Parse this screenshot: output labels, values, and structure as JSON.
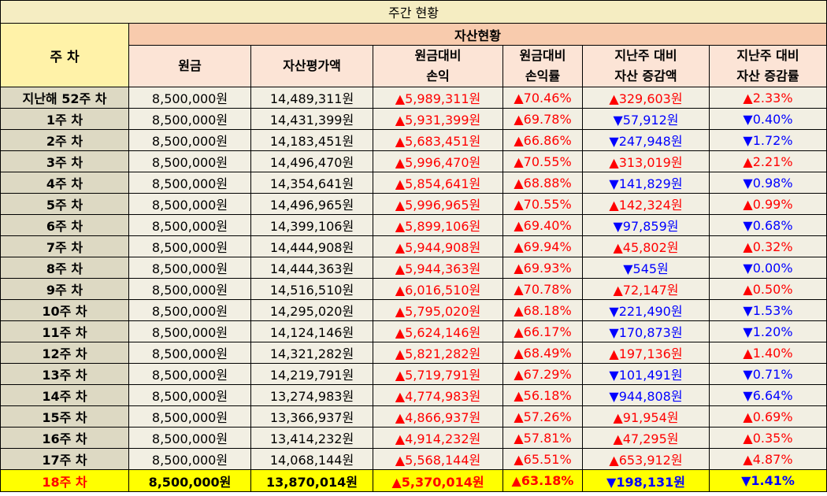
{
  "title": "주간 현황",
  "week_header": "주 차",
  "group_header": "자산현황",
  "columns": [
    {
      "line1": "원금",
      "line2": ""
    },
    {
      "line1": "자산평가액",
      "line2": ""
    },
    {
      "line1": "원금대비",
      "line2": "손익"
    },
    {
      "line1": "원금대비",
      "line2": "손익률"
    },
    {
      "line1": "지난주 대비",
      "line2": "자산 증감액"
    },
    {
      "line1": "지난주 대비",
      "line2": "자산 증감률"
    }
  ],
  "rows": [
    {
      "week": "지난해 52주 차",
      "principal": "8,500,000원",
      "asset": "14,489,311원",
      "pl": "▲5,989,311원",
      "pl_dir": "up",
      "pl_rate": "▲70.46%",
      "pl_rate_dir": "up",
      "chg": "▲329,603원",
      "chg_dir": "up",
      "chg_rate": "▲2.33%",
      "chg_rate_dir": "up"
    },
    {
      "week": "1주 차",
      "principal": "8,500,000원",
      "asset": "14,431,399원",
      "pl": "▲5,931,399원",
      "pl_dir": "up",
      "pl_rate": "▲69.78%",
      "pl_rate_dir": "up",
      "chg": "▼57,912원",
      "chg_dir": "down",
      "chg_rate": "▼0.40%",
      "chg_rate_dir": "down"
    },
    {
      "week": "2주 차",
      "principal": "8,500,000원",
      "asset": "14,183,451원",
      "pl": "▲5,683,451원",
      "pl_dir": "up",
      "pl_rate": "▲66.86%",
      "pl_rate_dir": "up",
      "chg": "▼247,948원",
      "chg_dir": "down",
      "chg_rate": "▼1.72%",
      "chg_rate_dir": "down"
    },
    {
      "week": "3주 차",
      "principal": "8,500,000원",
      "asset": "14,496,470원",
      "pl": "▲5,996,470원",
      "pl_dir": "up",
      "pl_rate": "▲70.55%",
      "pl_rate_dir": "up",
      "chg": "▲313,019원",
      "chg_dir": "up",
      "chg_rate": "▲2.21%",
      "chg_rate_dir": "up"
    },
    {
      "week": "4주 차",
      "principal": "8,500,000원",
      "asset": "14,354,641원",
      "pl": "▲5,854,641원",
      "pl_dir": "up",
      "pl_rate": "▲68.88%",
      "pl_rate_dir": "up",
      "chg": "▼141,829원",
      "chg_dir": "down",
      "chg_rate": "▼0.98%",
      "chg_rate_dir": "down"
    },
    {
      "week": "5주 차",
      "principal": "8,500,000원",
      "asset": "14,496,965원",
      "pl": "▲5,996,965원",
      "pl_dir": "up",
      "pl_rate": "▲70.55%",
      "pl_rate_dir": "up",
      "chg": "▲142,324원",
      "chg_dir": "up",
      "chg_rate": "▲0.99%",
      "chg_rate_dir": "up"
    },
    {
      "week": "6주 차",
      "principal": "8,500,000원",
      "asset": "14,399,106원",
      "pl": "▲5,899,106원",
      "pl_dir": "up",
      "pl_rate": "▲69.40%",
      "pl_rate_dir": "up",
      "chg": "▼97,859원",
      "chg_dir": "down",
      "chg_rate": "▼0.68%",
      "chg_rate_dir": "down"
    },
    {
      "week": "7주 차",
      "principal": "8,500,000원",
      "asset": "14,444,908원",
      "pl": "▲5,944,908원",
      "pl_dir": "up",
      "pl_rate": "▲69.94%",
      "pl_rate_dir": "up",
      "chg": "▲45,802원",
      "chg_dir": "up",
      "chg_rate": "▲0.32%",
      "chg_rate_dir": "up"
    },
    {
      "week": "8주 차",
      "principal": "8,500,000원",
      "asset": "14,444,363원",
      "pl": "▲5,944,363원",
      "pl_dir": "up",
      "pl_rate": "▲69.93%",
      "pl_rate_dir": "up",
      "chg": "▼545원",
      "chg_dir": "down",
      "chg_rate": "▼0.00%",
      "chg_rate_dir": "down"
    },
    {
      "week": "9주 차",
      "principal": "8,500,000원",
      "asset": "14,516,510원",
      "pl": "▲6,016,510원",
      "pl_dir": "up",
      "pl_rate": "▲70.78%",
      "pl_rate_dir": "up",
      "chg": "▲72,147원",
      "chg_dir": "up",
      "chg_rate": "▲0.50%",
      "chg_rate_dir": "up"
    },
    {
      "week": "10주 차",
      "principal": "8,500,000원",
      "asset": "14,295,020원",
      "pl": "▲5,795,020원",
      "pl_dir": "up",
      "pl_rate": "▲68.18%",
      "pl_rate_dir": "up",
      "chg": "▼221,490원",
      "chg_dir": "down",
      "chg_rate": "▼1.53%",
      "chg_rate_dir": "down"
    },
    {
      "week": "11주 차",
      "principal": "8,500,000원",
      "asset": "14,124,146원",
      "pl": "▲5,624,146원",
      "pl_dir": "up",
      "pl_rate": "▲66.17%",
      "pl_rate_dir": "up",
      "chg": "▼170,873원",
      "chg_dir": "down",
      "chg_rate": "▼1.20%",
      "chg_rate_dir": "down"
    },
    {
      "week": "12주 차",
      "principal": "8,500,000원",
      "asset": "14,321,282원",
      "pl": "▲5,821,282원",
      "pl_dir": "up",
      "pl_rate": "▲68.49%",
      "pl_rate_dir": "up",
      "chg": "▲197,136원",
      "chg_dir": "up",
      "chg_rate": "▲1.40%",
      "chg_rate_dir": "up"
    },
    {
      "week": "13주 차",
      "principal": "8,500,000원",
      "asset": "14,219,791원",
      "pl": "▲5,719,791원",
      "pl_dir": "up",
      "pl_rate": "▲67.29%",
      "pl_rate_dir": "up",
      "chg": "▼101,491원",
      "chg_dir": "down",
      "chg_rate": "▼0.71%",
      "chg_rate_dir": "down"
    },
    {
      "week": "14주 차",
      "principal": "8,500,000원",
      "asset": "13,274,983원",
      "pl": "▲4,774,983원",
      "pl_dir": "up",
      "pl_rate": "▲56.18%",
      "pl_rate_dir": "up",
      "chg": "▼944,808원",
      "chg_dir": "down",
      "chg_rate": "▼6.64%",
      "chg_rate_dir": "down"
    },
    {
      "week": "15주 차",
      "principal": "8,500,000원",
      "asset": "13,366,937원",
      "pl": "▲4,866,937원",
      "pl_dir": "up",
      "pl_rate": "▲57.26%",
      "pl_rate_dir": "up",
      "chg": "▲91,954원",
      "chg_dir": "up",
      "chg_rate": "▲0.69%",
      "chg_rate_dir": "up"
    },
    {
      "week": "16주 차",
      "principal": "8,500,000원",
      "asset": "13,414,232원",
      "pl": "▲4,914,232원",
      "pl_dir": "up",
      "pl_rate": "▲57.81%",
      "pl_rate_dir": "up",
      "chg": "▲47,295원",
      "chg_dir": "up",
      "chg_rate": "▲0.35%",
      "chg_rate_dir": "up"
    },
    {
      "week": "17주 차",
      "principal": "8,500,000원",
      "asset": "14,068,144원",
      "pl": "▲5,568,144원",
      "pl_dir": "up",
      "pl_rate": "▲65.51%",
      "pl_rate_dir": "up",
      "chg": "▲653,912원",
      "chg_dir": "up",
      "chg_rate": "▲4.87%",
      "chg_rate_dir": "up"
    },
    {
      "week": "18주 차",
      "principal": "8,500,000원",
      "asset": "13,870,014원",
      "pl": "▲5,370,014원",
      "pl_dir": "up",
      "pl_rate": "▲63.18%",
      "pl_rate_dir": "up",
      "chg": "▼198,131원",
      "chg_dir": "down",
      "chg_rate": "▼1.41%",
      "chg_rate_dir": "down",
      "current": true
    }
  ],
  "colors": {
    "up": "#ff0000",
    "down": "#0000ff",
    "highlight": "#ffff00"
  }
}
